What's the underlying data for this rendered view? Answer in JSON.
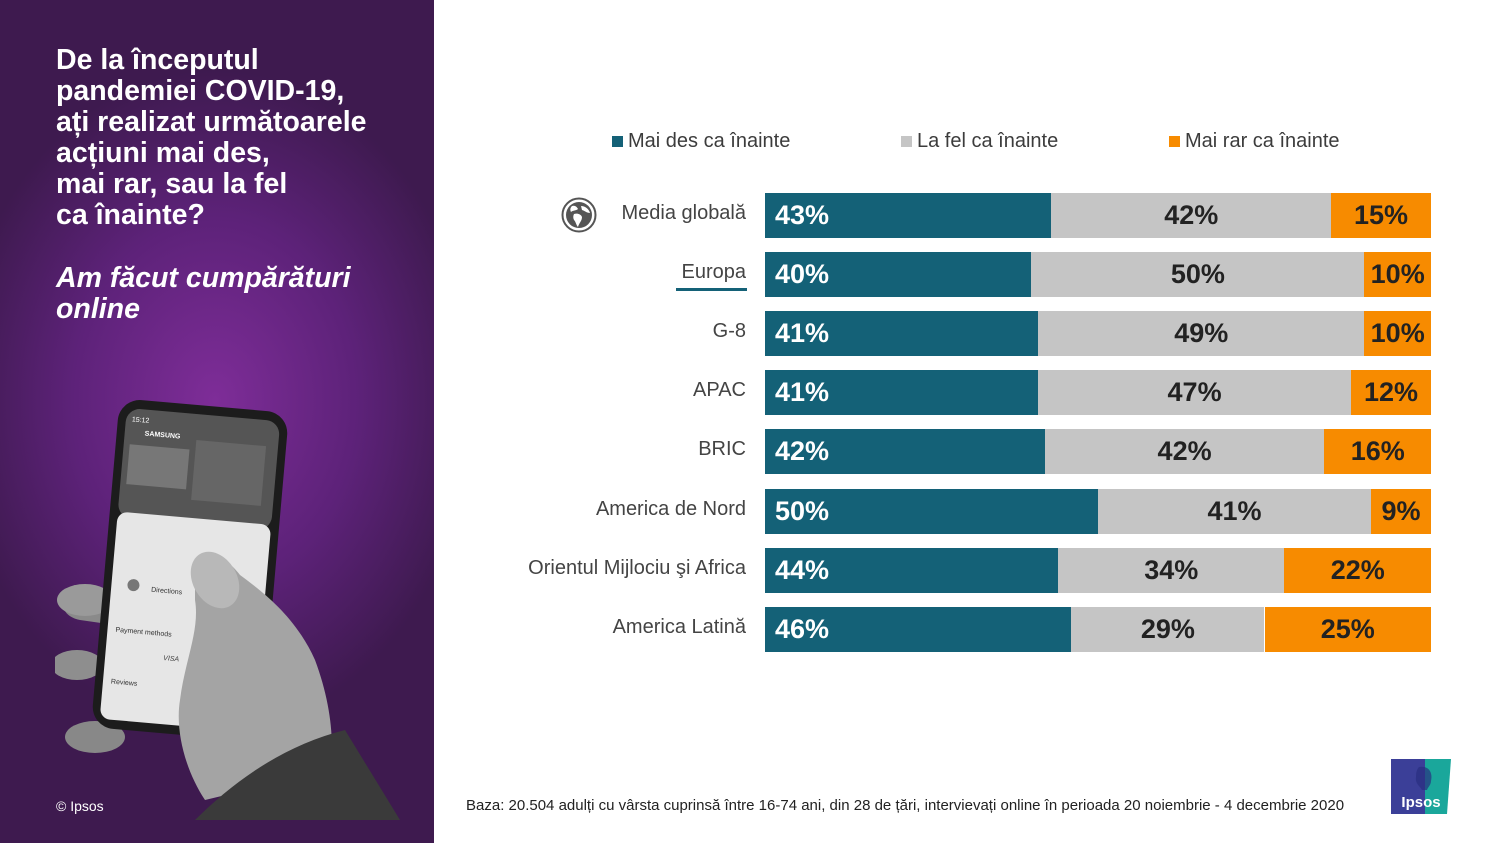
{
  "left_panel": {
    "question": "De la începutul\npandemiei COVID-19,\nați realizat următoarele\nacțiuni mai des,\nmai rar, sau la fel\nca înainte?",
    "subquestion": "Am făcut cumpărături\nonline",
    "copyright": "© Ipsos",
    "phone_screen": {
      "time": "15:12",
      "store": "SAMSUNG",
      "directions": "Directions",
      "payment": "Payment methods",
      "visa": "VISA",
      "reviews": "Reviews"
    }
  },
  "chart_data": {
    "type": "bar",
    "orientation": "horizontal",
    "stacked": true,
    "title": "Am făcut cumpărături online",
    "categories": [
      "Media globală",
      "Europa",
      "G-8",
      "APAC",
      "BRIC",
      "America de Nord",
      "Orientul Mijlociu şi Africa",
      "America Latină"
    ],
    "series": [
      {
        "name": "Mai des ca înainte",
        "color": "#146177",
        "values": [
          43,
          40,
          41,
          41,
          42,
          50,
          44,
          46
        ]
      },
      {
        "name": "La fel ca înainte",
        "color": "#c5c5c5",
        "values": [
          42,
          50,
          49,
          47,
          42,
          41,
          34,
          29
        ]
      },
      {
        "name": "Mai rar ca înainte",
        "color": "#f78b00",
        "values": [
          15,
          10,
          10,
          12,
          16,
          9,
          22,
          25
        ]
      }
    ],
    "value_suffix": "%",
    "xlim": [
      0,
      100
    ],
    "legend": "top",
    "highlighted_category": "Europa",
    "grid": false
  },
  "footnote": "Baza: 20.504 adulți cu vârsta cuprinsă între 16-74 ani, din 28 de țări, intervievați online în perioada 20 noiembrie - 4 decembrie 2020",
  "logo": {
    "text": "Ipsos",
    "colors": [
      "#3b3f98",
      "#1aa79b"
    ]
  }
}
